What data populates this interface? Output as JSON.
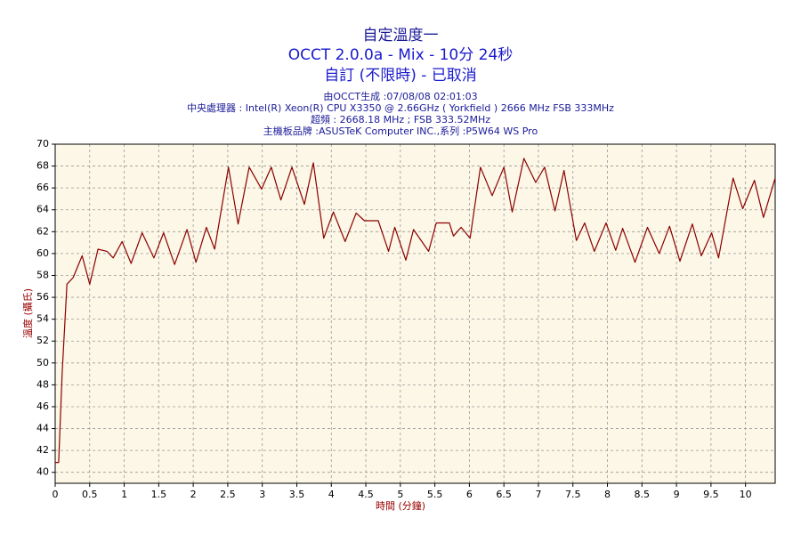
{
  "chart_data": {
    "type": "line",
    "title": "自定溫度一",
    "subtitle": "OCCT 2.0.0a - Mix - 10分 24秒",
    "subtitle2": "自訂 (不限時) - 已取消",
    "info": [
      "由OCCT生成 :07/08/08 02:01:03",
      "中央處理器 : Intel(R) Xeon(R) CPU X3350 @ 2.66GHz ( Yorkfield ) 2666 MHz FSB 333MHz",
      "超頻 : 2668.18 MHz ; FSB 333.52MHz",
      "主機板品牌 :ASUSTeK Computer INC.,系列 :P5W64 WS Pro"
    ],
    "x_label": "時間 (分鐘)",
    "y_label": "溫度 (攝氏)",
    "xlim": [
      0,
      10.43
    ],
    "ylim": [
      39,
      70
    ],
    "xticks": [
      0,
      0.5,
      1,
      1.5,
      2,
      2.5,
      3,
      3.5,
      4,
      4.5,
      5,
      5.5,
      6,
      6.5,
      7,
      7.5,
      8,
      8.5,
      9,
      9.5,
      10
    ],
    "yticks": [
      40,
      42,
      44,
      46,
      48,
      50,
      52,
      54,
      56,
      58,
      60,
      62,
      64,
      66,
      68,
      70
    ],
    "grid": true,
    "color": "#8b0000",
    "x": [
      0,
      0.05,
      0.1,
      0.17,
      0.26,
      0.39,
      0.5,
      0.62,
      0.75,
      0.84,
      0.97,
      1.1,
      1.26,
      1.43,
      1.57,
      1.73,
      1.91,
      2.04,
      2.19,
      2.31,
      2.51,
      2.65,
      2.81,
      2.99,
      3.13,
      3.27,
      3.43,
      3.61,
      3.74,
      3.89,
      4.03,
      4.2,
      4.36,
      4.48,
      4.68,
      4.83,
      4.92,
      5.08,
      5.19,
      5.41,
      5.52,
      5.71,
      5.77,
      5.88,
      6.01,
      6.16,
      6.33,
      6.5,
      6.62,
      6.79,
      6.96,
      7.09,
      7.24,
      7.37,
      7.55,
      7.67,
      7.81,
      7.98,
      8.12,
      8.22,
      8.4,
      8.58,
      8.75,
      8.9,
      9.05,
      9.23,
      9.36,
      9.51,
      9.61,
      9.82,
      9.96,
      10.13,
      10.26,
      10.43
    ],
    "values": [
      40.9,
      40.9,
      49,
      57.2,
      57.8,
      59.8,
      57.2,
      60.4,
      60.2,
      59.6,
      61.1,
      59.1,
      61.9,
      59.6,
      61.9,
      59,
      62.2,
      59.2,
      62.4,
      60.4,
      67.9,
      62.7,
      67.9,
      65.9,
      67.9,
      64.9,
      67.9,
      64.5,
      68.3,
      61.4,
      63.8,
      61.1,
      63.7,
      63,
      63,
      60.2,
      62.4,
      59.4,
      62.2,
      60.2,
      62.8,
      62.8,
      61.6,
      62.4,
      61.4,
      67.9,
      65.3,
      67.9,
      63.8,
      68.7,
      66.5,
      67.9,
      63.9,
      67.6,
      61.2,
      62.8,
      60.2,
      62.8,
      60.3,
      62.3,
      59.2,
      62.4,
      60,
      62.5,
      59.3,
      62.7,
      59.8,
      61.9,
      59.6,
      66.9,
      64.1,
      66.7,
      63.3,
      66.9
    ]
  }
}
